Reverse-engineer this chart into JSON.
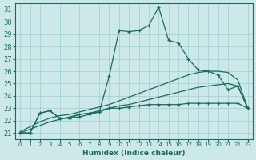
{
  "xlabel": "Humidex (Indice chaleur)",
  "bg_color": "#cde8e8",
  "grid_color": "#9ecece",
  "line_color": "#1a6b5e",
  "xlim": [
    -0.5,
    23.5
  ],
  "ylim": [
    20.5,
    31.5
  ],
  "xticks": [
    0,
    1,
    2,
    3,
    4,
    5,
    6,
    7,
    8,
    9,
    10,
    11,
    12,
    13,
    14,
    15,
    16,
    17,
    18,
    19,
    20,
    21,
    22,
    23
  ],
  "yticks": [
    21,
    22,
    23,
    24,
    25,
    26,
    27,
    28,
    29,
    30,
    31
  ],
  "main_x": [
    0,
    1,
    2,
    3,
    4,
    5,
    6,
    7,
    8,
    9,
    10,
    11,
    12,
    13,
    14,
    15,
    16,
    17,
    18,
    19,
    20,
    21,
    22,
    23
  ],
  "main_y": [
    21.0,
    21.0,
    22.6,
    22.8,
    22.2,
    22.2,
    22.5,
    22.6,
    22.7,
    25.6,
    29.3,
    29.2,
    29.3,
    29.7,
    31.2,
    28.5,
    28.3,
    27.0,
    26.1,
    26.0,
    25.7,
    24.5,
    24.8,
    23.0
  ],
  "reg1_x": [
    0,
    1,
    2,
    3,
    4,
    5,
    6,
    7,
    8,
    9,
    10,
    11,
    12,
    13,
    14,
    15,
    16,
    17,
    18,
    19,
    20,
    21,
    22,
    23
  ],
  "reg1_y": [
    21.0,
    21.3,
    21.6,
    21.9,
    22.1,
    22.3,
    22.5,
    22.6,
    22.8,
    23.0,
    23.2,
    23.3,
    23.5,
    23.7,
    23.9,
    24.1,
    24.3,
    24.5,
    24.7,
    24.8,
    24.9,
    25.0,
    24.8,
    23.0
  ],
  "reg2_x": [
    0,
    1,
    2,
    3,
    4,
    5,
    6,
    7,
    8,
    9,
    10,
    11,
    12,
    13,
    14,
    15,
    16,
    17,
    18,
    19,
    20,
    21,
    22,
    23
  ],
  "reg2_y": [
    21.1,
    21.5,
    21.9,
    22.2,
    22.4,
    22.5,
    22.7,
    22.9,
    23.1,
    23.3,
    23.6,
    23.9,
    24.2,
    24.5,
    24.8,
    25.1,
    25.4,
    25.7,
    25.9,
    26.0,
    26.0,
    25.9,
    25.3,
    23.0
  ],
  "marked_x": [
    0,
    1,
    2,
    3,
    4,
    5,
    6,
    7,
    8,
    9,
    10,
    11,
    12,
    13,
    14,
    15,
    16,
    17,
    18,
    19,
    20,
    21,
    22,
    23
  ],
  "marked_y": [
    21.0,
    21.0,
    22.6,
    22.8,
    22.2,
    22.2,
    22.3,
    22.5,
    22.7,
    23.0,
    23.0,
    23.1,
    23.2,
    23.3,
    23.3,
    23.3,
    23.3,
    23.4,
    23.4,
    23.4,
    23.4,
    23.4,
    23.4,
    23.0
  ]
}
